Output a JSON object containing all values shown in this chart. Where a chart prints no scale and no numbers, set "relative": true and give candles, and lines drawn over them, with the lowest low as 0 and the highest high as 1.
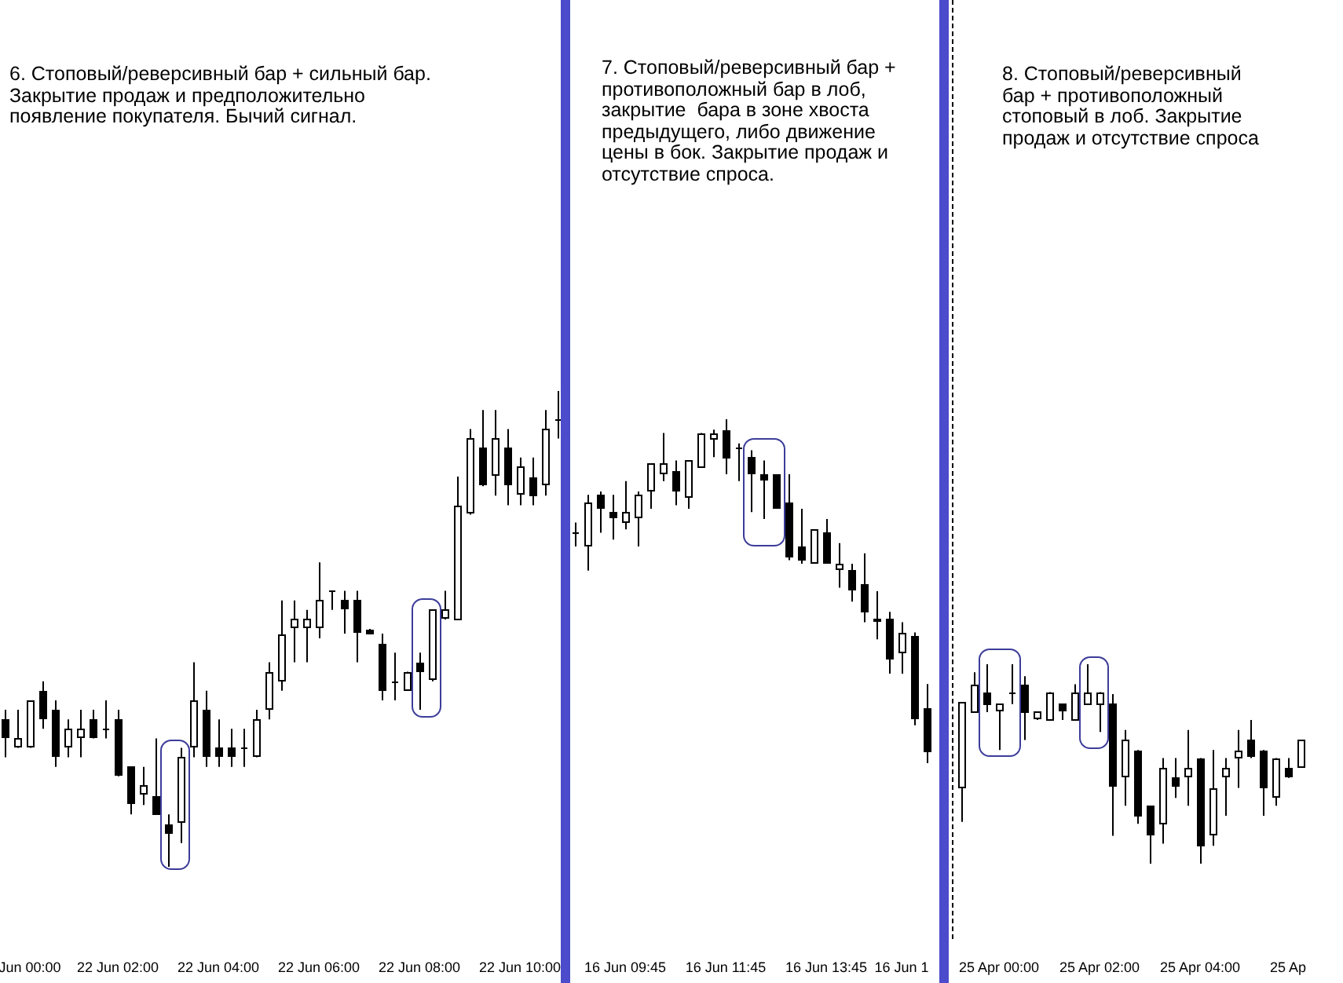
{
  "chart_data": [
    {
      "type": "candlestick",
      "relative": true,
      "title": "6. Стоповый/реверсивный бар + сильный бар.\nЗакрытие продаж и предположительно\nпоявление покупателя. Бычий сигнал.",
      "categories": [
        null,
        null,
        "Jun 00:00",
        null,
        null,
        null,
        null,
        null,
        null,
        "22 Jun 02:00",
        null,
        null,
        null,
        null,
        null,
        null,
        null,
        "22 Jun 04:00",
        null,
        null,
        null,
        null,
        null,
        null,
        null,
        "22 Jun 06:00",
        null,
        null,
        null,
        null,
        null,
        null,
        null,
        "22 Jun 08:00",
        null,
        null,
        null,
        null,
        null,
        null,
        null,
        "22 Jun 10:00",
        null,
        null,
        null
      ],
      "ohlc": [
        [
          0.31,
          0.33,
          0.23,
          0.27
        ],
        [
          0.25,
          0.33,
          0.25,
          0.27
        ],
        [
          0.25,
          0.35,
          0.25,
          0.35
        ],
        [
          0.37,
          0.39,
          0.29,
          0.31
        ],
        [
          0.33,
          0.35,
          0.21,
          0.23
        ],
        [
          0.25,
          0.31,
          0.23,
          0.29
        ],
        [
          0.27,
          0.33,
          0.23,
          0.29
        ],
        [
          0.31,
          0.33,
          0.27,
          0.27
        ],
        [
          0.29,
          0.35,
          0.27,
          0.29
        ],
        [
          0.31,
          0.33,
          0.19,
          0.19
        ],
        [
          0.21,
          0.21,
          0.11,
          0.13
        ],
        [
          0.15,
          0.21,
          0.13,
          0.17
        ],
        [
          0.15,
          0.27,
          0.11,
          0.11
        ],
        [
          0.09,
          0.11,
          0,
          0.07
        ],
        [
          0.09,
          0.25,
          0.05,
          0.23
        ],
        [
          0.25,
          0.43,
          0.23,
          0.35
        ],
        [
          0.33,
          0.37,
          0.21,
          0.23
        ],
        [
          0.25,
          0.31,
          0.21,
          0.23
        ],
        [
          0.25,
          0.29,
          0.21,
          0.23
        ],
        [
          0.25,
          0.29,
          0.21,
          0.25
        ],
        [
          0.23,
          0.33,
          0.23,
          0.31
        ],
        [
          0.33,
          0.43,
          0.31,
          0.41
        ],
        [
          0.39,
          0.56,
          0.37,
          0.49
        ],
        [
          0.5,
          0.56,
          0.43,
          0.52
        ],
        [
          0.5,
          0.54,
          0.43,
          0.52
        ],
        [
          0.5,
          0.64,
          0.48,
          0.56
        ],
        [
          0.58,
          0.58,
          0.54,
          0.58
        ],
        [
          0.56,
          0.58,
          0.49,
          0.54
        ],
        [
          0.56,
          0.58,
          0.43,
          0.49
        ],
        [
          0.5,
          0.5,
          0.49,
          0.49
        ],
        [
          0.47,
          0.49,
          0.35,
          0.37
        ],
        [
          0.39,
          0.45,
          0.35,
          0.39
        ],
        [
          0.37,
          0.41,
          0.37,
          0.41
        ],
        [
          0.43,
          0.45,
          0.33,
          0.41
        ],
        [
          0.39,
          0.54,
          0.39,
          0.54
        ],
        [
          0.52,
          0.58,
          0.52,
          0.54
        ],
        [
          0.52,
          0.82,
          0.52,
          0.76
        ],
        [
          0.74,
          0.92,
          0.74,
          0.9
        ],
        [
          0.88,
          0.96,
          0.8,
          0.8
        ],
        [
          0.82,
          0.96,
          0.78,
          0.9
        ],
        [
          0.88,
          0.92,
          0.76,
          0.8
        ],
        [
          0.78,
          0.86,
          0.76,
          0.84
        ],
        [
          0.82,
          0.86,
          0.76,
          0.78
        ],
        [
          0.8,
          0.96,
          0.78,
          0.92
        ],
        [
          0.94,
          1,
          0.9,
          0.94
        ]
      ]
    },
    {
      "type": "candlestick",
      "relative": true,
      "title": "7. Стоповый/реверсивный бар +\nпротивоположный бар в лоб,\nзакрытие  бара в зоне хвоста\nпредыдущего, либо движение\nцены в бок. Закрытие продаж и\nотсутствие спроса.",
      "categories": [
        null,
        null,
        null,
        null,
        "16 Jun 09:45",
        null,
        null,
        null,
        null,
        null,
        null,
        null,
        "16 Jun 11:45",
        null,
        null,
        null,
        null,
        null,
        null,
        null,
        "16 Jun 13:45",
        null,
        null,
        null,
        null,
        null,
        "16 Jun 1",
        null,
        null
      ],
      "ohlc": [
        [
          0.67,
          0.7,
          0.63,
          0.67
        ],
        [
          0.63,
          0.78,
          0.56,
          0.76
        ],
        [
          0.78,
          0.79,
          0.67,
          0.74
        ],
        [
          0.73,
          0.78,
          0.65,
          0.71
        ],
        [
          0.7,
          0.82,
          0.68,
          0.73
        ],
        [
          0.71,
          0.79,
          0.63,
          0.78
        ],
        [
          0.79,
          0.87,
          0.74,
          0.87
        ],
        [
          0.84,
          0.96,
          0.82,
          0.87
        ],
        [
          0.85,
          0.88,
          0.75,
          0.79
        ],
        [
          0.77,
          0.88,
          0.74,
          0.88
        ],
        [
          0.86,
          0.96,
          0.86,
          0.96
        ],
        [
          0.94,
          0.97,
          0.89,
          0.96
        ],
        [
          0.97,
          1,
          0.84,
          0.89
        ],
        [
          0.92,
          0.93,
          0.82,
          0.92
        ],
        [
          0.89,
          0.91,
          0.73,
          0.84
        ],
        [
          0.84,
          0.88,
          0.71,
          0.82
        ],
        [
          0.84,
          0.84,
          0.74,
          0.74
        ],
        [
          0.76,
          0.84,
          0.59,
          0.6
        ],
        [
          0.63,
          0.74,
          0.58,
          0.59
        ],
        [
          0.58,
          0.68,
          0.58,
          0.68
        ],
        [
          0.67,
          0.71,
          0.58,
          0.58
        ],
        [
          0.56,
          0.64,
          0.51,
          0.58
        ],
        [
          0.56,
          0.58,
          0.47,
          0.5
        ],
        [
          0.52,
          0.61,
          0.41,
          0.44
        ],
        [
          0.42,
          0.5,
          0.36,
          0.41
        ],
        [
          0.42,
          0.44,
          0.26,
          0.3
        ],
        [
          0.32,
          0.41,
          0.26,
          0.38
        ],
        [
          0.37,
          0.38,
          0.11,
          0.13
        ],
        [
          0.16,
          0.23,
          0,
          0.03
        ]
      ]
    },
    {
      "type": "candlestick",
      "relative": true,
      "title": "8. Стоповый/реверсивный\nбар + противоположный\nстоповый в лоб. Закрытие\nпродаж и отсутствие спроса",
      "categories": [
        null,
        null,
        null,
        "25 Apr 00:00",
        null,
        null,
        null,
        null,
        null,
        null,
        null,
        "25 Apr 02:00",
        null,
        null,
        null,
        null,
        null,
        null,
        null,
        "25 Apr 04:00",
        null,
        null,
        null,
        null,
        null,
        null,
        "25 Ap",
        null
      ],
      "ohlc": [
        [
          0.38,
          0.81,
          0.21,
          0.81
        ],
        [
          0.76,
          0.96,
          0.76,
          0.9
        ],
        [
          0.86,
          1,
          0.76,
          0.8
        ],
        [
          0.76,
          0.8,
          0.57,
          0.8
        ],
        [
          0.86,
          1,
          0.8,
          0.86
        ],
        [
          0.9,
          0.94,
          0.62,
          0.76
        ],
        [
          0.72,
          0.76,
          0.72,
          0.76
        ],
        [
          0.72,
          0.86,
          0.72,
          0.86
        ],
        [
          0.8,
          0.8,
          0.72,
          0.76
        ],
        [
          0.72,
          0.9,
          0.72,
          0.86
        ],
        [
          0.8,
          1,
          0.8,
          0.86
        ],
        [
          0.8,
          0.86,
          0.66,
          0.86
        ],
        [
          0.8,
          0.85,
          0.14,
          0.38
        ],
        [
          0.43,
          0.67,
          0.29,
          0.62
        ],
        [
          0.57,
          0.57,
          0.2,
          0.24
        ],
        [
          0.29,
          0.29,
          0,
          0.14
        ],
        [
          0.2,
          0.53,
          0.1,
          0.48
        ],
        [
          0.43,
          0.53,
          0.33,
          0.38
        ],
        [
          0.43,
          0.67,
          0.29,
          0.48
        ],
        [
          0.53,
          0.53,
          0,
          0.09
        ],
        [
          0.14,
          0.57,
          0.09,
          0.38
        ],
        [
          0.43,
          0.53,
          0.24,
          0.48
        ],
        [
          0.53,
          0.67,
          0.38,
          0.57
        ],
        [
          0.62,
          0.72,
          0.53,
          0.53
        ],
        [
          0.57,
          0.57,
          0.24,
          0.38
        ],
        [
          0.33,
          0.53,
          0.29,
          0.53
        ],
        [
          0.48,
          0.53,
          0.43,
          0.43
        ],
        [
          0.48,
          0.62,
          0.48,
          0.62
        ]
      ]
    }
  ]
}
